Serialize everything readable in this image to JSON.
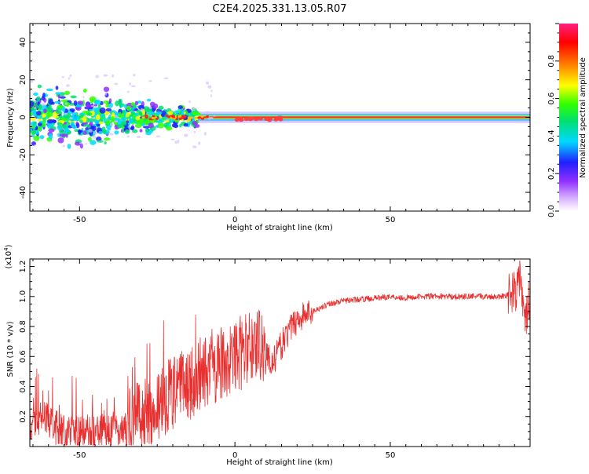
{
  "figure_title": "C2E4.2025.331.13.05.R07",
  "chart_data": [
    {
      "type": "heatmap",
      "title": "C2E4.2025.331.13.05.R07",
      "xlabel": "Height of straight line (km)",
      "ylabel": "Frequency (Hz)",
      "xlim": [
        -66,
        95
      ],
      "ylim": [
        -50,
        50
      ],
      "xticks": [
        -50,
        0,
        50
      ],
      "yticks": [
        -40,
        -20,
        0,
        20,
        40
      ],
      "colorbar": {
        "label": "Normalized spectral amplitude",
        "range": [
          0.0,
          1.0
        ],
        "ticks": [
          0.0,
          0.2,
          0.4,
          0.6,
          0.8
        ],
        "colors": [
          "#ffffff",
          "#b060ff",
          "#3020ff",
          "#00e0ff",
          "#20ff20",
          "#ffff00",
          "#ff8000",
          "#ff0000",
          "#ff3080"
        ]
      },
      "band_description": "Signal concentrated near 0 Hz; broadband noise (±15 Hz) at heights below -15 km, narrow strong band from -12 km to 95 km"
    },
    {
      "type": "line",
      "xlabel": "Height of straight line (km)",
      "ylabel": "SNR (10 * v/v)",
      "y_multiplier_label": "(x10",
      "y_multiplier_exp": "4",
      "y_multiplier_close": ")",
      "xlim": [
        -66,
        95
      ],
      "ylim": [
        0.0,
        1.25
      ],
      "xticks": [
        -50,
        0,
        50
      ],
      "yticks": [
        0.2,
        0.4,
        0.6,
        0.8,
        1.0,
        1.2
      ],
      "series": [
        {
          "name": "SNR",
          "color": "#e83030",
          "x": [
            -66,
            -62,
            -58,
            -54,
            -50,
            -45,
            -40,
            -36,
            -32,
            -28,
            -24,
            -20,
            -16,
            -12,
            -8,
            -4,
            0,
            4,
            8,
            12,
            16,
            20,
            25,
            30,
            35,
            40,
            45,
            50,
            55,
            60,
            65,
            70,
            75,
            80,
            85,
            90,
            92,
            93,
            95
          ],
          "values": [
            0.15,
            0.2,
            0.12,
            0.08,
            0.09,
            0.1,
            0.1,
            0.12,
            0.18,
            0.25,
            0.3,
            0.35,
            0.4,
            0.45,
            0.5,
            0.55,
            0.6,
            0.65,
            0.7,
            0.55,
            0.72,
            0.85,
            0.9,
            0.95,
            0.97,
            0.98,
            0.99,
            1.0,
            0.99,
            1.0,
            1.0,
            1.0,
            1.0,
            1.0,
            1.0,
            1.02,
            1.15,
            0.8,
            1.0
          ]
        }
      ]
    }
  ]
}
